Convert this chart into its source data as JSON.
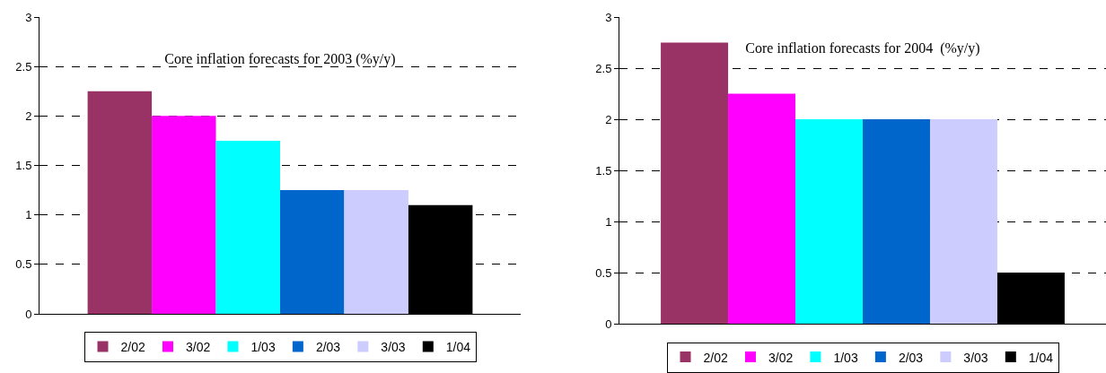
{
  "chart_data": [
    {
      "type": "bar",
      "title": "Core inflation forecasts for 2003 (%y/y)",
      "categories": [
        null
      ],
      "series": [
        {
          "name": "2/02",
          "color": "#993366",
          "values": [
            2.25
          ]
        },
        {
          "name": "3/02",
          "color": "#ff00ff",
          "values": [
            2.0
          ]
        },
        {
          "name": "1/03",
          "color": "#00ffff",
          "values": [
            1.75
          ]
        },
        {
          "name": "2/03",
          "color": "#0066cc",
          "values": [
            1.25
          ]
        },
        {
          "name": "3/03",
          "color": "#ccccff",
          "values": [
            1.25
          ]
        },
        {
          "name": "1/04",
          "color": "#000000",
          "values": [
            1.1
          ]
        }
      ],
      "ylim": [
        0,
        3
      ],
      "yticks": [
        0,
        0.5,
        1,
        1.5,
        2,
        2.5,
        3
      ],
      "grid": "y",
      "legend": "bottom"
    },
    {
      "type": "bar",
      "title": "Core inflation forecasts for 2004  (%y/y)",
      "categories": [
        null
      ],
      "series": [
        {
          "name": "2/02",
          "color": "#993366",
          "values": [
            2.75
          ]
        },
        {
          "name": "3/02",
          "color": "#ff00ff",
          "values": [
            2.25
          ]
        },
        {
          "name": "1/03",
          "color": "#00ffff",
          "values": [
            2.0
          ]
        },
        {
          "name": "2/03",
          "color": "#0066cc",
          "values": [
            2.0
          ]
        },
        {
          "name": "3/03",
          "color": "#ccccff",
          "values": [
            2.0
          ]
        },
        {
          "name": "1/04",
          "color": "#000000",
          "values": [
            0.5
          ]
        }
      ],
      "ylim": [
        0,
        3
      ],
      "yticks": [
        0,
        0.5,
        1,
        1.5,
        2,
        2.5,
        3
      ],
      "grid": "y",
      "legend": "bottom"
    }
  ]
}
